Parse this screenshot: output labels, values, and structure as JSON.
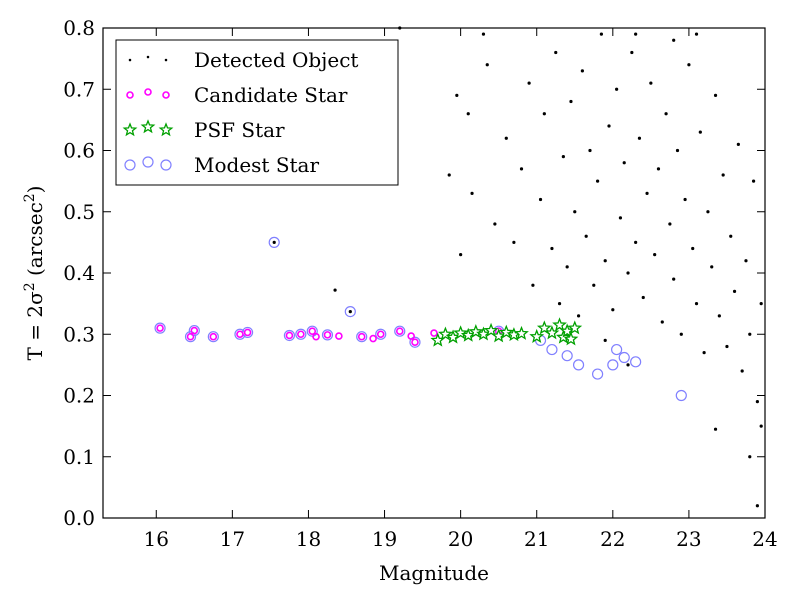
{
  "chart_data": {
    "type": "scatter",
    "xlabel": "Magnitude",
    "ylabel_prefix": "T = 2σ",
    "ylabel_suffix": " (arcsec",
    "ylabel_close": ")",
    "ylabel_sup": "2",
    "xlim": [
      15.3,
      24.0
    ],
    "ylim": [
      0.0,
      0.8
    ],
    "xticks": [
      16,
      17,
      18,
      19,
      20,
      21,
      22,
      23,
      24
    ],
    "yticks": [
      0.0,
      0.1,
      0.2,
      0.3,
      0.4,
      0.5,
      0.6,
      0.7,
      0.8
    ],
    "grid": false,
    "legend_position": "top-left",
    "series": [
      {
        "name": "Detected Object",
        "marker": "dot",
        "color": "#000000",
        "points": [
          [
            17.55,
            0.45
          ],
          [
            18.35,
            0.372
          ],
          [
            18.55,
            0.337
          ],
          [
            19.2,
            0.8
          ],
          [
            19.85,
            0.56
          ],
          [
            19.95,
            0.69
          ],
          [
            20.0,
            0.43
          ],
          [
            20.1,
            0.66
          ],
          [
            20.15,
            0.53
          ],
          [
            20.3,
            0.79
          ],
          [
            20.35,
            0.74
          ],
          [
            20.45,
            0.48
          ],
          [
            20.6,
            0.62
          ],
          [
            20.7,
            0.45
          ],
          [
            20.8,
            0.57
          ],
          [
            20.9,
            0.71
          ],
          [
            20.95,
            0.38
          ],
          [
            21.05,
            0.52
          ],
          [
            21.1,
            0.66
          ],
          [
            21.2,
            0.44
          ],
          [
            21.25,
            0.76
          ],
          [
            21.3,
            0.35
          ],
          [
            21.35,
            0.59
          ],
          [
            21.4,
            0.41
          ],
          [
            21.45,
            0.68
          ],
          [
            21.5,
            0.5
          ],
          [
            21.55,
            0.33
          ],
          [
            21.6,
            0.73
          ],
          [
            21.65,
            0.46
          ],
          [
            21.7,
            0.6
          ],
          [
            21.75,
            0.38
          ],
          [
            21.8,
            0.55
          ],
          [
            21.85,
            0.79
          ],
          [
            21.9,
            0.42
          ],
          [
            21.95,
            0.64
          ],
          [
            22.0,
            0.34
          ],
          [
            22.05,
            0.7
          ],
          [
            22.1,
            0.49
          ],
          [
            22.15,
            0.58
          ],
          [
            22.2,
            0.4
          ],
          [
            22.25,
            0.76
          ],
          [
            22.3,
            0.45
          ],
          [
            22.35,
            0.62
          ],
          [
            22.4,
            0.36
          ],
          [
            22.45,
            0.53
          ],
          [
            22.5,
            0.71
          ],
          [
            22.55,
            0.43
          ],
          [
            22.6,
            0.57
          ],
          [
            22.65,
            0.32
          ],
          [
            22.7,
            0.66
          ],
          [
            22.75,
            0.48
          ],
          [
            22.8,
            0.39
          ],
          [
            22.85,
            0.6
          ],
          [
            22.9,
            0.3
          ],
          [
            22.95,
            0.52
          ],
          [
            23.0,
            0.74
          ],
          [
            23.05,
            0.44
          ],
          [
            23.1,
            0.35
          ],
          [
            23.15,
            0.63
          ],
          [
            23.2,
            0.27
          ],
          [
            23.25,
            0.5
          ],
          [
            23.3,
            0.41
          ],
          [
            23.35,
            0.69
          ],
          [
            23.4,
            0.33
          ],
          [
            23.45,
            0.56
          ],
          [
            23.5,
            0.28
          ],
          [
            23.55,
            0.46
          ],
          [
            23.6,
            0.37
          ],
          [
            23.65,
            0.61
          ],
          [
            23.7,
            0.24
          ],
          [
            23.75,
            0.42
          ],
          [
            23.8,
            0.3
          ],
          [
            23.85,
            0.55
          ],
          [
            23.9,
            0.19
          ],
          [
            23.95,
            0.35
          ],
          [
            23.35,
            0.145
          ],
          [
            23.8,
            0.1
          ],
          [
            23.95,
            0.15
          ],
          [
            23.9,
            0.02
          ],
          [
            22.8,
            0.78
          ],
          [
            23.1,
            0.79
          ],
          [
            22.3,
            0.79
          ],
          [
            21.9,
            0.29
          ],
          [
            22.2,
            0.25
          ]
        ]
      },
      {
        "name": "Candidate Star",
        "marker": "small-circle",
        "color": "#ff00ff",
        "points": [
          [
            16.05,
            0.31
          ],
          [
            16.45,
            0.296
          ],
          [
            16.5,
            0.306
          ],
          [
            16.75,
            0.296
          ],
          [
            17.1,
            0.3
          ],
          [
            17.2,
            0.303
          ],
          [
            17.75,
            0.298
          ],
          [
            17.9,
            0.3
          ],
          [
            18.05,
            0.305
          ],
          [
            18.1,
            0.296
          ],
          [
            18.25,
            0.299
          ],
          [
            18.4,
            0.297
          ],
          [
            18.7,
            0.296
          ],
          [
            18.85,
            0.293
          ],
          [
            18.95,
            0.3
          ],
          [
            19.2,
            0.305
          ],
          [
            19.35,
            0.297
          ],
          [
            19.4,
            0.287
          ],
          [
            19.65,
            0.302
          ],
          [
            20.5,
            0.305
          ]
        ]
      },
      {
        "name": "PSF Star",
        "marker": "star",
        "color": "#00a000",
        "points": [
          [
            19.7,
            0.29
          ],
          [
            19.8,
            0.3
          ],
          [
            19.9,
            0.295
          ],
          [
            20.0,
            0.302
          ],
          [
            20.1,
            0.298
          ],
          [
            20.2,
            0.304
          ],
          [
            20.3,
            0.3
          ],
          [
            20.4,
            0.306
          ],
          [
            20.5,
            0.297
          ],
          [
            20.6,
            0.303
          ],
          [
            20.7,
            0.299
          ],
          [
            20.8,
            0.301
          ],
          [
            21.0,
            0.296
          ],
          [
            21.1,
            0.31
          ],
          [
            21.2,
            0.302
          ],
          [
            21.3,
            0.315
          ],
          [
            21.35,
            0.295
          ],
          [
            21.4,
            0.305
          ],
          [
            21.45,
            0.292
          ],
          [
            21.5,
            0.31
          ]
        ]
      },
      {
        "name": "Modest Star",
        "marker": "open-circle",
        "color": "#8080ff",
        "points": [
          [
            16.05,
            0.31
          ],
          [
            16.45,
            0.296
          ],
          [
            16.5,
            0.306
          ],
          [
            16.75,
            0.296
          ],
          [
            17.1,
            0.3
          ],
          [
            17.2,
            0.303
          ],
          [
            17.55,
            0.45
          ],
          [
            17.75,
            0.298
          ],
          [
            17.9,
            0.3
          ],
          [
            18.05,
            0.305
          ],
          [
            18.25,
            0.299
          ],
          [
            18.55,
            0.337
          ],
          [
            18.7,
            0.296
          ],
          [
            18.95,
            0.3
          ],
          [
            19.2,
            0.305
          ],
          [
            19.4,
            0.287
          ],
          [
            20.5,
            0.305
          ],
          [
            21.05,
            0.29
          ],
          [
            21.2,
            0.275
          ],
          [
            21.4,
            0.265
          ],
          [
            21.55,
            0.25
          ],
          [
            21.8,
            0.235
          ],
          [
            22.0,
            0.25
          ],
          [
            22.05,
            0.275
          ],
          [
            22.15,
            0.262
          ],
          [
            22.3,
            0.255
          ],
          [
            22.9,
            0.2
          ]
        ]
      }
    ]
  }
}
